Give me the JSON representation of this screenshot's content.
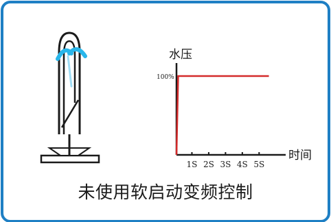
{
  "caption": "未使用软启动变频控制",
  "colors": {
    "frame": "#1e7fc4",
    "line": "#d42a2a",
    "axis": "#1a1a1a",
    "water": "#29b6ea",
    "fixture": "#1a1a1a"
  },
  "chart_data": {
    "type": "line",
    "title": "",
    "ylabel": "水压",
    "xlabel": "时间",
    "y_tick_labels": [
      "100%"
    ],
    "x_tick_labels": [
      "1S",
      "2S",
      "3S",
      "4S",
      "5S"
    ],
    "x_ticks": [
      1,
      2,
      3,
      4,
      5
    ],
    "xlim": [
      0,
      6.5
    ],
    "ylim": [
      0,
      100
    ],
    "grid": false,
    "series": [
      {
        "x": [
          0,
          0.1,
          5.5
        ],
        "y": [
          0,
          100,
          100
        ]
      }
    ]
  }
}
